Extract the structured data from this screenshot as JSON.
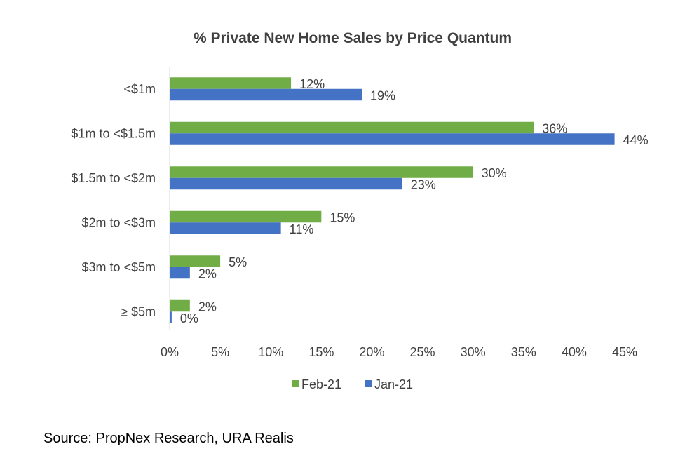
{
  "chart_data": {
    "type": "bar",
    "orientation": "horizontal",
    "title": "% Private New Home Sales by Price Quantum",
    "categories": [
      "<$1m",
      "$1m to <$1.5m",
      "$1.5m to <$2m",
      "$2m to <$3m",
      "$3m to <$5m",
      "≥ $5m"
    ],
    "series": [
      {
        "name": "Feb-21",
        "color": "#70AD47",
        "values": [
          12,
          36,
          30,
          15,
          5,
          2
        ],
        "labels": [
          "12%",
          "36%",
          "30%",
          "15%",
          "5%",
          "2%"
        ]
      },
      {
        "name": "Jan-21",
        "color": "#4472C4",
        "values": [
          19,
          44,
          23,
          11,
          2,
          0.2
        ],
        "labels": [
          "19%",
          "44%",
          "23%",
          "11%",
          "2%",
          "0%"
        ]
      }
    ],
    "xlim": [
      0,
      45
    ],
    "x_ticks": [
      0,
      5,
      10,
      15,
      20,
      25,
      30,
      35,
      40,
      45
    ],
    "x_tick_labels": [
      "0%",
      "5%",
      "10%",
      "15%",
      "20%",
      "25%",
      "30%",
      "35%",
      "40%",
      "45%"
    ],
    "legend_position": "bottom",
    "grid": false
  },
  "source_text": "Source: PropNex Research, URA Realis"
}
